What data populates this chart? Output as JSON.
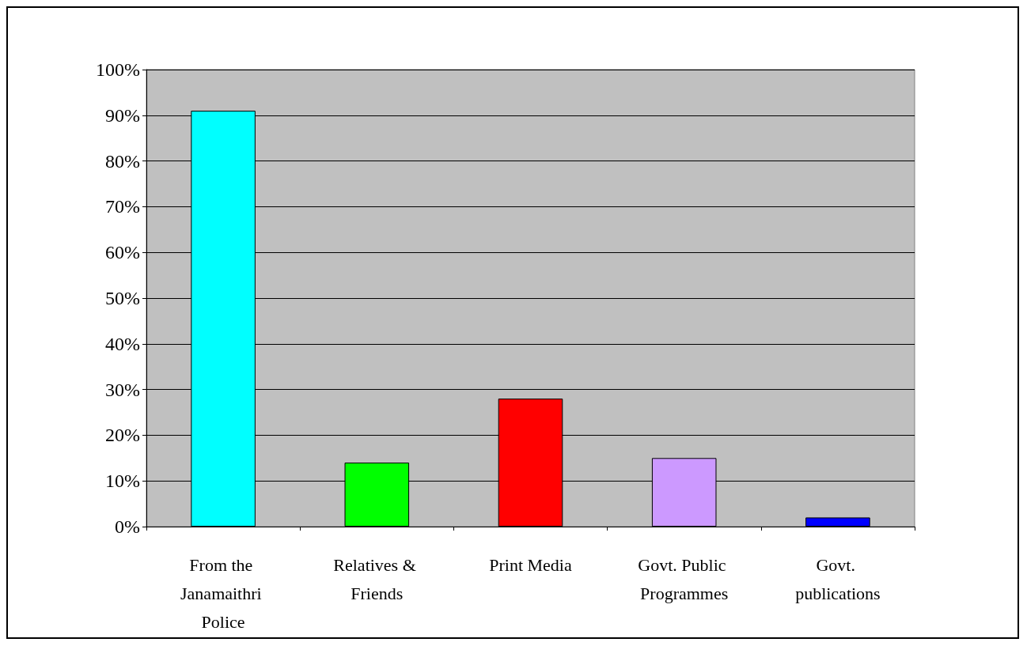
{
  "chart_data": {
    "type": "bar",
    "categories": [
      "From the Janamaithri Police",
      "Relatives & Friends",
      "Print Media",
      "Govt. Public Programmes",
      "Govt. publications"
    ],
    "values": [
      91,
      14,
      28,
      15,
      2
    ],
    "colors": [
      "#00ffff",
      "#00ff00",
      "#ff0000",
      "#cc99ff",
      "#0000ff"
    ],
    "ylim": [
      0,
      100
    ],
    "yticks": [
      {
        "value": 0,
        "label": "0%"
      },
      {
        "value": 10,
        "label": "10%"
      },
      {
        "value": 20,
        "label": "20%"
      },
      {
        "value": 30,
        "label": "30%"
      },
      {
        "value": 40,
        "label": "40%"
      },
      {
        "value": 50,
        "label": "50%"
      },
      {
        "value": 60,
        "label": "60%"
      },
      {
        "value": 70,
        "label": "70%"
      },
      {
        "value": 80,
        "label": "80%"
      },
      {
        "value": 90,
        "label": "90%"
      },
      {
        "value": 100,
        "label": "100%"
      }
    ],
    "grid": true
  }
}
